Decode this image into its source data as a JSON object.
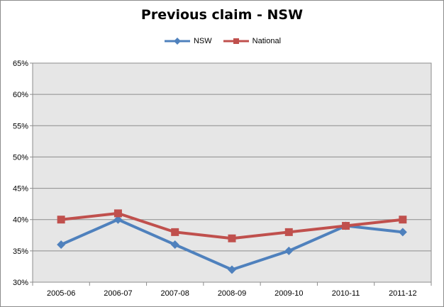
{
  "chart_data": {
    "type": "line",
    "title": "Previous claim - NSW",
    "categories": [
      "2005-06",
      "2006-07",
      "2007-08",
      "2008-09",
      "2009-10",
      "2010-11",
      "2011-12"
    ],
    "series": [
      {
        "name": "NSW",
        "values": [
          36,
          40,
          36,
          32,
          35,
          39,
          38
        ],
        "color": "#4f81bd",
        "marker": "diamond"
      },
      {
        "name": "National",
        "values": [
          40,
          41,
          38,
          37,
          38,
          39,
          40
        ],
        "color": "#c0504d",
        "marker": "square"
      }
    ],
    "ylim": [
      30,
      65
    ],
    "yticks": [
      "30%",
      "35%",
      "40%",
      "45%",
      "50%",
      "55%",
      "60%",
      "65%"
    ],
    "grid": true,
    "legend_position": "top",
    "plot_background": "#e6e6e6"
  }
}
